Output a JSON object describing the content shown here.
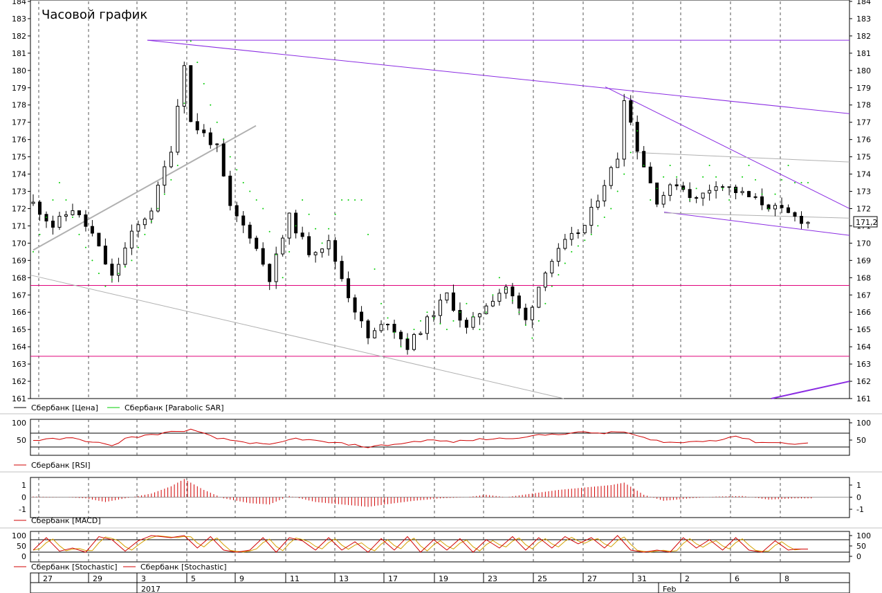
{
  "title": "Часовой график",
  "last_price_label": "171,2",
  "colors": {
    "price": "#000000",
    "sar": "#00cc00",
    "trend": "#8a2be2",
    "support": "#e0007a",
    "gray_line": "#b0b0b0",
    "indicator": "#d00000",
    "stoch_signal": "#d4a000"
  },
  "legends": {
    "price": "Сбербанк [Цена]",
    "sar": "Сбербанк [Parabolic SAR]",
    "rsi": "Сбербанк [RSI]",
    "macd": "Сбербанк [MACD]",
    "stoch1": "Сбербанк [Stochastic]",
    "stoch2": "Сбербанк [Stochastic]"
  },
  "x_axis": {
    "days": [
      "27",
      "29",
      "3",
      "5",
      "9",
      "11",
      "13",
      "17",
      "19",
      "23",
      "25",
      "27",
      "31",
      "2",
      "6",
      "8"
    ],
    "months": [
      "2017",
      "Feb"
    ]
  },
  "chart_data": [
    {
      "type": "candlestick",
      "name": "Сбербанк [Цена]",
      "ylim": [
        161,
        184
      ],
      "y_ticks": [
        161,
        162,
        163,
        164,
        165,
        166,
        167,
        168,
        169,
        170,
        171,
        172,
        173,
        174,
        175,
        176,
        177,
        178,
        179,
        180,
        181,
        182,
        183,
        184
      ],
      "x": [
        "27",
        "29",
        "3",
        "5",
        "9",
        "11",
        "13",
        "17",
        "19",
        "23",
        "25",
        "27",
        "31",
        "2",
        "6",
        "8"
      ],
      "close_path": [
        [
          0,
          172.3
        ],
        [
          3,
          171.0
        ],
        [
          6,
          172.0
        ],
        [
          9,
          170.5
        ],
        [
          12,
          168.0
        ],
        [
          15,
          170.5
        ],
        [
          18,
          172.0
        ],
        [
          21,
          175.5
        ],
        [
          23,
          180.5
        ],
        [
          24,
          177.0
        ],
        [
          26,
          176.3
        ],
        [
          28,
          175.5
        ],
        [
          30,
          172.0
        ],
        [
          33,
          170.5
        ],
        [
          36,
          168.0
        ],
        [
          39,
          171.5
        ],
        [
          42,
          169.5
        ],
        [
          45,
          170.0
        ],
        [
          48,
          167.0
        ],
        [
          51,
          164.5
        ],
        [
          54,
          165.5
        ],
        [
          57,
          164.0
        ],
        [
          60,
          165.5
        ],
        [
          63,
          167.0
        ],
        [
          66,
          165.0
        ],
        [
          69,
          166.5
        ],
        [
          72,
          167.5
        ],
        [
          75,
          165.5
        ],
        [
          78,
          168.5
        ],
        [
          81,
          170.0
        ],
        [
          84,
          171.0
        ],
        [
          87,
          173.5
        ],
        [
          89,
          175.0
        ],
        [
          90,
          178.5
        ],
        [
          92,
          175.5
        ],
        [
          95,
          172.5
        ],
        [
          98,
          173.5
        ],
        [
          101,
          172.5
        ],
        [
          104,
          173.5
        ],
        [
          107,
          173.0
        ],
        [
          110,
          172.5
        ],
        [
          113,
          172.0
        ],
        [
          116,
          171.5
        ],
        [
          118,
          171.2
        ]
      ],
      "sar_path": [
        [
          0,
          169.5
        ],
        [
          4,
          173.5
        ],
        [
          7,
          170.5
        ],
        [
          11,
          167.5
        ],
        [
          15,
          169.0
        ],
        [
          19,
          172.0
        ],
        [
          22,
          174.5
        ],
        [
          24,
          181.7
        ],
        [
          27,
          178.0
        ],
        [
          30,
          175.0
        ],
        [
          32,
          173.5
        ],
        [
          35,
          172.0
        ],
        [
          38,
          168.0
        ],
        [
          41,
          172.5
        ],
        [
          44,
          170.0
        ],
        [
          47,
          172.5
        ],
        [
          50,
          172.5
        ],
        [
          53,
          166.5
        ],
        [
          56,
          164.0
        ],
        [
          60,
          166.0
        ],
        [
          63,
          165.0
        ],
        [
          66,
          166.5
        ],
        [
          68,
          165.0
        ],
        [
          71,
          168.0
        ],
        [
          74,
          166.0
        ],
        [
          76,
          164.5
        ],
        [
          79,
          167.5
        ],
        [
          82,
          169.5
        ],
        [
          85,
          170.5
        ],
        [
          88,
          172.0
        ],
        [
          90,
          174.0
        ],
        [
          92,
          176.5
        ],
        [
          94,
          172.5
        ],
        [
          97,
          174.5
        ],
        [
          100,
          172.5
        ],
        [
          103,
          174.5
        ],
        [
          106,
          172.5
        ],
        [
          109,
          174.5
        ],
        [
          112,
          172.0
        ],
        [
          115,
          174.5
        ],
        [
          116,
          173.5
        ]
      ]
    },
    {
      "type": "line",
      "name": "Сбербанк [RSI]",
      "ylim": [
        0,
        100
      ],
      "y_ticks": [
        50,
        100
      ],
      "levels": [
        30,
        70
      ],
      "path": [
        [
          0,
          50
        ],
        [
          6,
          55
        ],
        [
          10,
          42
        ],
        [
          12,
          32
        ],
        [
          14,
          55
        ],
        [
          19,
          68
        ],
        [
          24,
          80
        ],
        [
          28,
          55
        ],
        [
          32,
          45
        ],
        [
          36,
          35
        ],
        [
          40,
          55
        ],
        [
          44,
          45
        ],
        [
          48,
          38
        ],
        [
          51,
          30
        ],
        [
          56,
          40
        ],
        [
          60,
          50
        ],
        [
          64,
          45
        ],
        [
          68,
          52
        ],
        [
          72,
          55
        ],
        [
          78,
          65
        ],
        [
          83,
          72
        ],
        [
          87,
          70
        ],
        [
          90,
          74
        ],
        [
          94,
          50
        ],
        [
          98,
          42
        ],
        [
          104,
          50
        ],
        [
          107,
          62
        ],
        [
          110,
          45
        ],
        [
          116,
          40
        ]
      ]
    },
    {
      "type": "bar",
      "name": "Сбербанк [MACD]",
      "ylim": [
        -1,
        1
      ],
      "y_ticks": [
        -1,
        0,
        1
      ],
      "path": [
        [
          0,
          0.05
        ],
        [
          5,
          0.0
        ],
        [
          8,
          -0.1
        ],
        [
          11,
          -0.4
        ],
        [
          14,
          -0.1
        ],
        [
          18,
          0.3
        ],
        [
          21,
          0.9
        ],
        [
          23,
          1.5
        ],
        [
          26,
          0.6
        ],
        [
          29,
          -0.1
        ],
        [
          33,
          -0.5
        ],
        [
          36,
          -0.6
        ],
        [
          39,
          0.1
        ],
        [
          43,
          -0.4
        ],
        [
          47,
          -0.6
        ],
        [
          51,
          -0.8
        ],
        [
          55,
          -0.5
        ],
        [
          58,
          -0.3
        ],
        [
          62,
          -0.1
        ],
        [
          66,
          0.0
        ],
        [
          69,
          0.2
        ],
        [
          72,
          0.0
        ],
        [
          76,
          0.3
        ],
        [
          80,
          0.6
        ],
        [
          84,
          0.8
        ],
        [
          88,
          1.0
        ],
        [
          90,
          1.2
        ],
        [
          93,
          0.2
        ],
        [
          96,
          -0.3
        ],
        [
          100,
          -0.1
        ],
        [
          104,
          0.05
        ],
        [
          108,
          0.1
        ],
        [
          112,
          -0.2
        ],
        [
          116,
          -0.1
        ]
      ]
    },
    {
      "type": "line",
      "name": "Сбербанк [Stochastic]",
      "ylim": [
        0,
        100
      ],
      "y_ticks": [
        0,
        50,
        100
      ],
      "levels": [
        20,
        80
      ],
      "path": [
        [
          0,
          30
        ],
        [
          2,
          90
        ],
        [
          4,
          25
        ],
        [
          6,
          40
        ],
        [
          8,
          20
        ],
        [
          10,
          95
        ],
        [
          12,
          80
        ],
        [
          14,
          25
        ],
        [
          16,
          75
        ],
        [
          18,
          100
        ],
        [
          21,
          90
        ],
        [
          23,
          100
        ],
        [
          25,
          40
        ],
        [
          27,
          95
        ],
        [
          29,
          30
        ],
        [
          31,
          20
        ],
        [
          33,
          30
        ],
        [
          35,
          90
        ],
        [
          37,
          20
        ],
        [
          39,
          90
        ],
        [
          41,
          75
        ],
        [
          43,
          30
        ],
        [
          45,
          90
        ],
        [
          47,
          30
        ],
        [
          49,
          70
        ],
        [
          51,
          20
        ],
        [
          53,
          85
        ],
        [
          55,
          30
        ],
        [
          57,
          95
        ],
        [
          59,
          20
        ],
        [
          61,
          80
        ],
        [
          63,
          30
        ],
        [
          65,
          85
        ],
        [
          67,
          20
        ],
        [
          69,
          80
        ],
        [
          71,
          40
        ],
        [
          73,
          95
        ],
        [
          75,
          30
        ],
        [
          77,
          90
        ],
        [
          79,
          40
        ],
        [
          81,
          95
        ],
        [
          83,
          60
        ],
        [
          85,
          90
        ],
        [
          87,
          40
        ],
        [
          89,
          100
        ],
        [
          91,
          30
        ],
        [
          93,
          20
        ],
        [
          95,
          30
        ],
        [
          97,
          20
        ],
        [
          99,
          90
        ],
        [
          101,
          40
        ],
        [
          103,
          80
        ],
        [
          105,
          30
        ],
        [
          107,
          90
        ],
        [
          109,
          30
        ],
        [
          111,
          20
        ],
        [
          113,
          75
        ],
        [
          115,
          30
        ],
        [
          116,
          35
        ]
      ]
    }
  ]
}
